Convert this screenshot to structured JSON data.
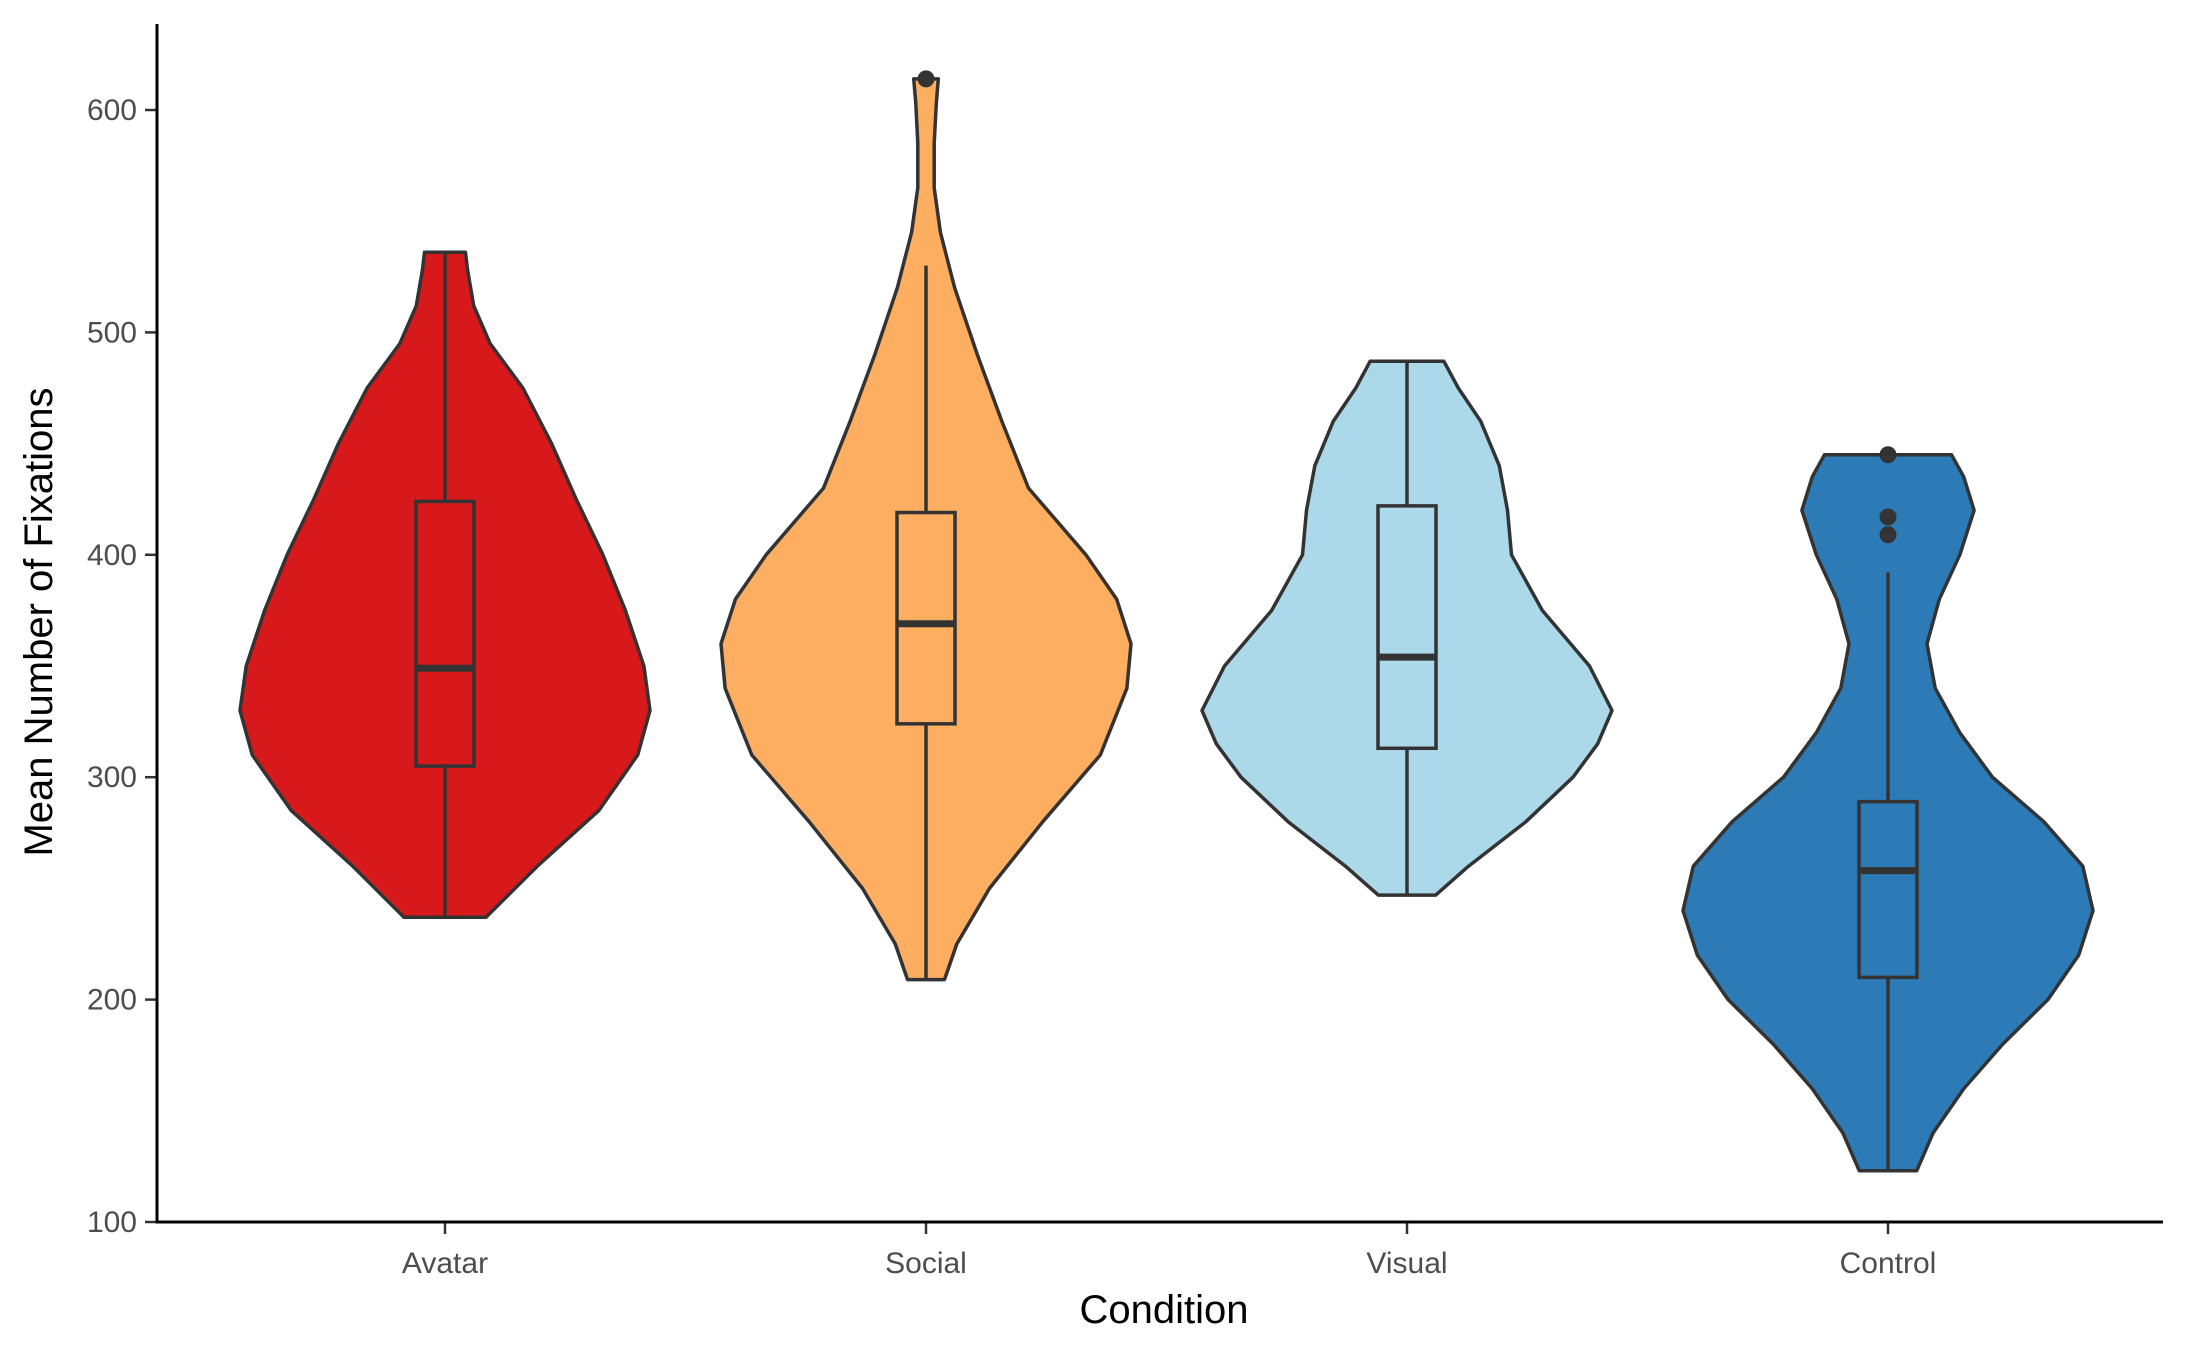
{
  "chart_data": {
    "type": "violin",
    "title": "",
    "xlabel": "Condition",
    "ylabel": "Mean Number of Fixations",
    "ylim": [
      100,
      640
    ],
    "yticks": [
      100,
      200,
      300,
      400,
      500,
      600
    ],
    "grid": false,
    "legend": "none",
    "categories": [
      "Avatar",
      "Social",
      "Visual",
      "Control"
    ],
    "series": [
      {
        "category": "Avatar",
        "color": "#d7191c",
        "min": 237,
        "q1": 305,
        "median": 349,
        "q3": 424,
        "max": 536,
        "outliers": [],
        "violin_profile": [
          [
            237,
            0.2
          ],
          [
            260,
            0.45
          ],
          [
            285,
            0.75
          ],
          [
            310,
            0.94
          ],
          [
            330,
            1.0
          ],
          [
            350,
            0.97
          ],
          [
            375,
            0.88
          ],
          [
            400,
            0.77
          ],
          [
            425,
            0.64
          ],
          [
            450,
            0.52
          ],
          [
            475,
            0.38
          ],
          [
            495,
            0.22
          ],
          [
            512,
            0.14
          ],
          [
            528,
            0.11
          ],
          [
            536,
            0.1
          ]
        ]
      },
      {
        "category": "Social",
        "color": "#fdae61",
        "min": 209,
        "q1": 324,
        "median": 369,
        "q3": 419,
        "max": 530,
        "outliers": [
          614
        ],
        "violin_profile": [
          [
            209,
            0.09
          ],
          [
            225,
            0.15
          ],
          [
            250,
            0.31
          ],
          [
            280,
            0.57
          ],
          [
            310,
            0.85
          ],
          [
            340,
            0.98
          ],
          [
            360,
            1.0
          ],
          [
            380,
            0.93
          ],
          [
            400,
            0.78
          ],
          [
            430,
            0.5
          ],
          [
            460,
            0.37
          ],
          [
            490,
            0.25
          ],
          [
            520,
            0.14
          ],
          [
            545,
            0.07
          ],
          [
            565,
            0.04
          ],
          [
            585,
            0.04
          ],
          [
            603,
            0.05
          ],
          [
            614,
            0.06
          ]
        ]
      },
      {
        "category": "Visual",
        "color": "#abd9e9",
        "min": 247,
        "q1": 313,
        "median": 354,
        "q3": 422,
        "max": 487,
        "outliers": [],
        "violin_profile": [
          [
            247,
            0.14
          ],
          [
            260,
            0.3
          ],
          [
            280,
            0.58
          ],
          [
            300,
            0.81
          ],
          [
            315,
            0.93
          ],
          [
            330,
            1.0
          ],
          [
            350,
            0.89
          ],
          [
            375,
            0.66
          ],
          [
            400,
            0.51
          ],
          [
            420,
            0.49
          ],
          [
            440,
            0.45
          ],
          [
            460,
            0.36
          ],
          [
            475,
            0.25
          ],
          [
            487,
            0.18
          ]
        ]
      },
      {
        "category": "Control",
        "color": "#2c7bb6",
        "min": 123,
        "q1": 210,
        "median": 258,
        "q3": 289,
        "max": 392,
        "outliers": [
          409,
          417,
          445
        ],
        "violin_profile": [
          [
            123,
            0.14
          ],
          [
            140,
            0.22
          ],
          [
            160,
            0.37
          ],
          [
            180,
            0.56
          ],
          [
            200,
            0.78
          ],
          [
            220,
            0.93
          ],
          [
            240,
            1.0
          ],
          [
            260,
            0.95
          ],
          [
            280,
            0.76
          ],
          [
            300,
            0.51
          ],
          [
            320,
            0.35
          ],
          [
            340,
            0.23
          ],
          [
            360,
            0.19
          ],
          [
            380,
            0.25
          ],
          [
            400,
            0.35
          ],
          [
            420,
            0.42
          ],
          [
            435,
            0.37
          ],
          [
            445,
            0.31
          ]
        ]
      }
    ]
  }
}
